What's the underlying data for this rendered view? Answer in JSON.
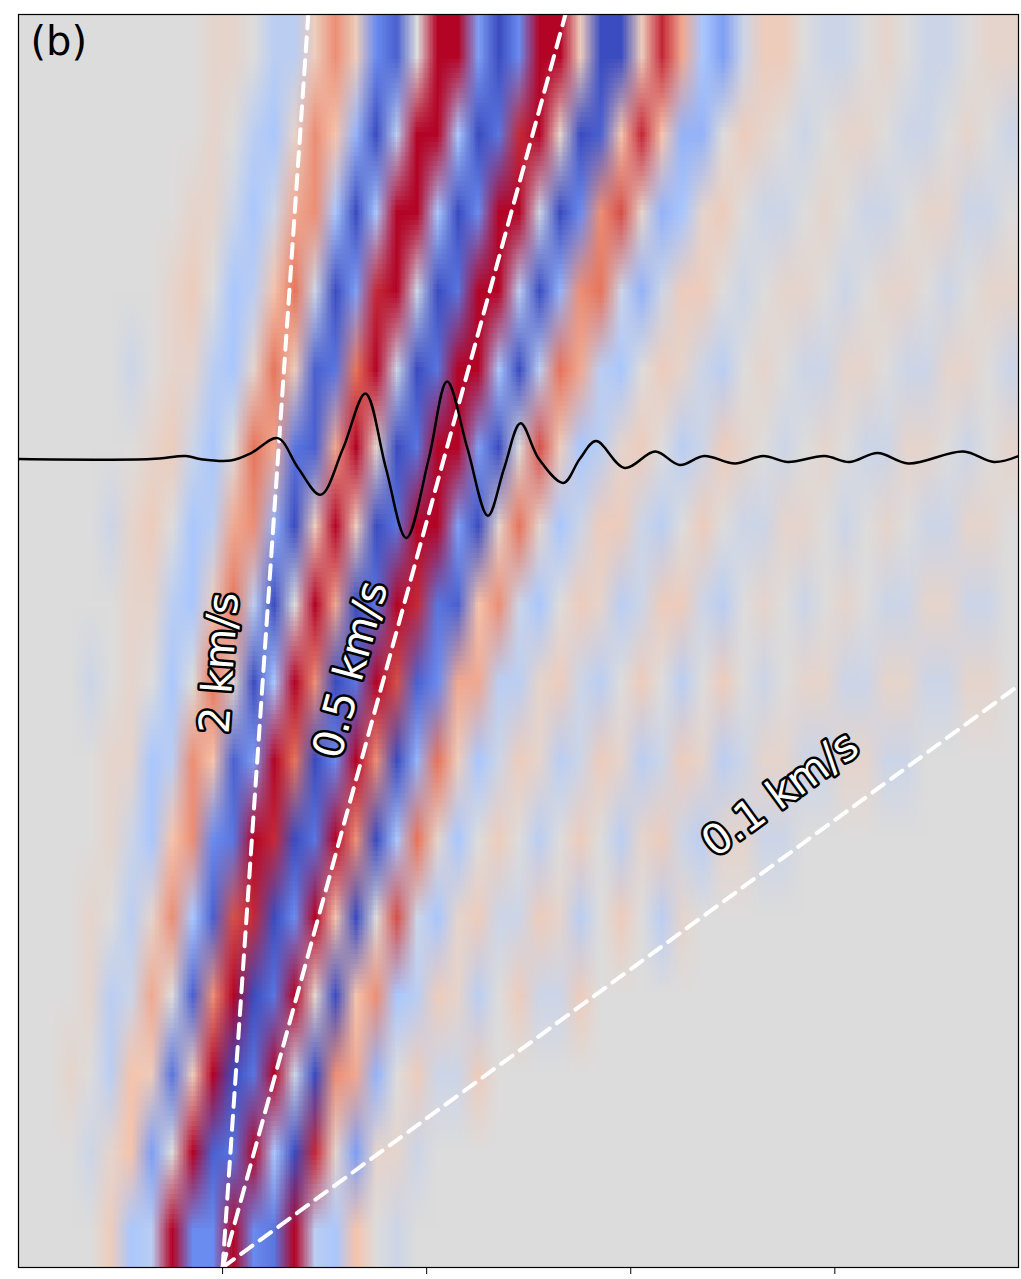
{
  "chart_data": {
    "type": "heatmap",
    "panel_label": "(b)",
    "xlim": [
      -1,
      3.9
    ],
    "xticks": [
      0,
      1,
      2,
      3
    ],
    "ylim": [
      0,
      0.84
    ],
    "yticks": [],
    "tick_labels": false,
    "cells": {
      "x_range": [
        -1,
        3.9
      ],
      "y_range": [
        0.84,
        0
      ],
      "clim": [
        -9,
        9
      ],
      "values": [
        [
          0,
          0,
          0,
          0,
          0,
          0,
          0,
          0,
          0,
          1,
          1,
          0,
          -2,
          -2,
          2,
          5,
          2,
          -6,
          -8,
          0,
          9,
          9,
          -5,
          -9,
          -6,
          9,
          9,
          2,
          -9,
          -9,
          2,
          8,
          4,
          -3,
          -5,
          -1,
          2,
          2,
          0,
          -1,
          -1,
          0,
          1,
          0,
          -1,
          -1,
          0,
          1,
          1
        ],
        [
          0,
          0,
          0,
          0,
          0,
          0,
          0,
          0,
          0,
          1,
          0,
          -2,
          -3,
          1,
          5,
          3,
          -4,
          -9,
          -2,
          9,
          9,
          -3,
          -9,
          -7,
          8,
          9,
          1,
          -9,
          -8,
          3,
          8,
          3,
          -4,
          -4,
          0,
          2,
          1,
          0,
          -1,
          0,
          1,
          1,
          0,
          -1,
          -1,
          0,
          1,
          0,
          -1
        ],
        [
          0,
          0,
          0,
          0,
          0,
          0,
          0,
          0,
          1,
          1,
          -1,
          -3,
          -1,
          4,
          5,
          -3,
          -9,
          -3,
          9,
          9,
          -3,
          -9,
          -6,
          9,
          9,
          -1,
          -9,
          -6,
          5,
          7,
          1,
          -4,
          -3,
          1,
          2,
          0,
          -1,
          -1,
          0,
          1,
          0,
          -1,
          -1,
          0,
          1,
          1,
          -1,
          -1,
          0
        ],
        [
          0,
          0,
          0,
          0,
          0,
          0,
          0,
          1,
          2,
          0,
          -3,
          -2,
          3,
          6,
          -1,
          -9,
          -5,
          8,
          9,
          -1,
          -9,
          -7,
          9,
          9,
          -2,
          -9,
          -4,
          5,
          6,
          -1,
          -4,
          -1,
          2,
          2,
          0,
          -1,
          0,
          1,
          1,
          0,
          -1,
          0,
          1,
          1,
          0,
          -1,
          0,
          1,
          1
        ],
        [
          0,
          0,
          0,
          0,
          0,
          -1,
          0,
          1,
          1,
          -2,
          -3,
          1,
          6,
          2,
          -8,
          -7,
          6,
          9,
          -1,
          -9,
          -7,
          9,
          9,
          -3,
          -9,
          -2,
          6,
          4,
          -2,
          -3,
          0,
          2,
          1,
          -1,
          -2,
          0,
          1,
          0,
          -1,
          -1,
          1,
          1,
          0,
          -1,
          -1,
          1,
          1,
          0,
          -1
        ],
        [
          0,
          0,
          0,
          0,
          0,
          0,
          1,
          2,
          -1,
          -3,
          0,
          6,
          4,
          -7,
          -8,
          4,
          9,
          1,
          -9,
          -7,
          9,
          9,
          -5,
          -9,
          0,
          7,
          2,
          -3,
          -2,
          1,
          2,
          0,
          -2,
          -1,
          2,
          1,
          0,
          -1,
          0,
          1,
          0,
          -1,
          -1,
          1,
          1,
          0,
          -1,
          0,
          1
        ],
        [
          0,
          0,
          0,
          0,
          -1,
          1,
          2,
          0,
          -3,
          -2,
          4,
          5,
          -4,
          -9,
          2,
          9,
          2,
          -9,
          -7,
          9,
          9,
          -5,
          -9,
          1,
          6,
          1,
          -3,
          -1,
          2,
          2,
          -1,
          -2,
          0,
          2,
          0,
          -1,
          -1,
          1,
          1,
          0,
          -1,
          0,
          1,
          0,
          -1,
          -1,
          1,
          1,
          0
        ],
        [
          0,
          0,
          0,
          0,
          0,
          1,
          1,
          -2,
          -3,
          2,
          6,
          -2,
          -9,
          0,
          9,
          4,
          -9,
          -7,
          9,
          8,
          -7,
          -8,
          3,
          5,
          -1,
          -3,
          0,
          2,
          1,
          -2,
          -1,
          2,
          2,
          -1,
          -2,
          0,
          1,
          0,
          -1,
          0,
          1,
          0,
          -1,
          -1,
          1,
          1,
          -1,
          -1,
          0
        ],
        [
          0,
          0,
          0,
          -1,
          0,
          1,
          0,
          -3,
          0,
          6,
          1,
          -9,
          -3,
          9,
          5,
          -9,
          -7,
          9,
          7,
          -8,
          -6,
          4,
          4,
          -2,
          -2,
          1,
          2,
          -1,
          -2,
          0,
          2,
          0,
          -2,
          0,
          2,
          0,
          -1,
          0,
          1,
          1,
          -1,
          -1,
          1,
          1,
          -1,
          -1,
          1,
          1,
          0
        ],
        [
          0,
          0,
          0,
          0,
          1,
          1,
          -3,
          -2,
          5,
          3,
          -8,
          -5,
          9,
          6,
          -9,
          -6,
          9,
          5,
          -9,
          -4,
          6,
          2,
          -3,
          -1,
          2,
          1,
          -2,
          -1,
          2,
          1,
          -2,
          -1,
          2,
          1,
          -2,
          -1,
          1,
          1,
          -1,
          -1,
          1,
          1,
          -1,
          -1,
          0,
          0,
          0,
          0,
          0
        ],
        [
          0,
          0,
          0,
          0,
          1,
          -1,
          -3,
          3,
          5,
          -6,
          -7,
          9,
          8,
          -9,
          -7,
          9,
          5,
          -9,
          -3,
          6,
          1,
          -3,
          0,
          2,
          0,
          -2,
          0,
          2,
          0,
          -2,
          1,
          2,
          -1,
          -2,
          1,
          1,
          -1,
          -1,
          0,
          0,
          0,
          0,
          0,
          0,
          0,
          0,
          0,
          0,
          0
        ],
        [
          0,
          0,
          0,
          1,
          0,
          -2,
          1,
          5,
          -3,
          -8,
          7,
          8,
          -9,
          -6,
          9,
          3,
          -9,
          0,
          7,
          -1,
          -3,
          1,
          2,
          -1,
          -1,
          2,
          1,
          -2,
          0,
          2,
          0,
          -2,
          1,
          0,
          0,
          0,
          0,
          0,
          0,
          0,
          0,
          0,
          0,
          0,
          0,
          0,
          0,
          0,
          0
        ],
        [
          0,
          0,
          0,
          1,
          -2,
          -1,
          4,
          0,
          -8,
          5,
          9,
          -9,
          -7,
          9,
          1,
          -9,
          3,
          5,
          -3,
          -2,
          2,
          1,
          -2,
          0,
          2,
          -1,
          -1,
          2,
          0,
          0,
          0,
          0,
          0,
          0,
          0,
          0,
          0,
          0,
          0,
          0,
          0,
          0,
          0,
          0,
          0,
          0,
          0,
          0,
          0
        ],
        [
          0,
          0,
          1,
          0,
          -2,
          3,
          2,
          -7,
          2,
          9,
          -9,
          -7,
          9,
          -1,
          -9,
          5,
          4,
          -4,
          0,
          2,
          -1,
          -1,
          2,
          0,
          0,
          0,
          0,
          0,
          0,
          0,
          0,
          0,
          0,
          0,
          0,
          0,
          0,
          0,
          0,
          0,
          0,
          0,
          0,
          0,
          0,
          0,
          0,
          0,
          0
        ],
        [
          0,
          0,
          0,
          -1,
          1,
          3,
          -5,
          0,
          9,
          -8,
          -7,
          9,
          -3,
          -9,
          8,
          1,
          -5,
          1,
          1,
          -1,
          0,
          0,
          0,
          0,
          0,
          0,
          0,
          0,
          0,
          0,
          0,
          0,
          0,
          0,
          0,
          0,
          0,
          0,
          0,
          0,
          0,
          0,
          0,
          0,
          0,
          0,
          0,
          0,
          0
        ],
        [
          0,
          0,
          0,
          0,
          2,
          -3,
          -2,
          9,
          -6,
          -6,
          9,
          -6,
          -7,
          9,
          -2,
          -3,
          3,
          0,
          -1,
          0,
          0,
          0,
          0,
          0,
          0,
          0,
          0,
          0,
          0,
          0,
          0,
          0,
          0,
          0,
          0,
          0,
          0,
          0,
          0,
          0,
          0,
          0,
          0,
          0,
          0,
          0,
          0,
          0,
          0
        ]
      ]
    },
    "trace": {
      "color": "#000000",
      "x": [
        -1.0,
        -0.35,
        -0.18,
        -0.11,
        0.04,
        0.14,
        0.27,
        0.37,
        0.48,
        0.59,
        0.7,
        0.8,
        0.9,
        1.01,
        1.1,
        1.2,
        1.3,
        1.38,
        1.46,
        1.55,
        1.67,
        1.75,
        1.83,
        1.97,
        2.12,
        2.24,
        2.36,
        2.51,
        2.65,
        2.77,
        2.95,
        3.07,
        3.21,
        3.36,
        3.63,
        3.78,
        3.9
      ],
      "y": [
        0.542,
        0.542,
        0.544,
        0.542,
        0.541,
        0.546,
        0.556,
        0.536,
        0.518,
        0.549,
        0.586,
        0.536,
        0.489,
        0.542,
        0.594,
        0.549,
        0.504,
        0.536,
        0.566,
        0.542,
        0.526,
        0.542,
        0.554,
        0.536,
        0.547,
        0.538,
        0.544,
        0.539,
        0.544,
        0.54,
        0.544,
        0.54,
        0.546,
        0.539,
        0.547,
        0.54,
        0.544
      ]
    },
    "lines": {
      "origin": [
        0,
        0
      ],
      "velocities": [
        2,
        0.5,
        0.1
      ],
      "labels": [
        "2 km/s",
        "0.5 km/s",
        "0.1 km/s"
      ],
      "color": "#ffffff",
      "line_style": "dashed"
    }
  }
}
